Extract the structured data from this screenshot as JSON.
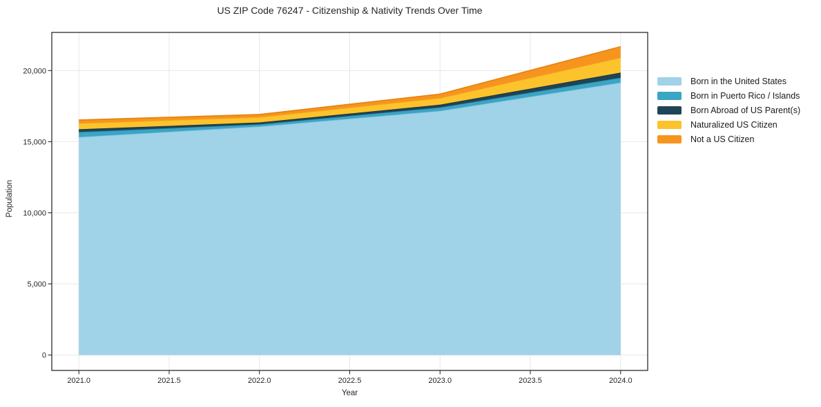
{
  "chart_data": {
    "type": "area",
    "stacked": true,
    "title": "US ZIP Code 76247 - Citizenship & Nativity Trends Over Time",
    "xlabel": "Year",
    "ylabel": "Population",
    "x": [
      2021,
      2022,
      2023,
      2024
    ],
    "series": [
      {
        "name": "Born in the United States",
        "color": "#a0d2e8",
        "edge": "#7cbcdd",
        "values": [
          15330,
          16070,
          17170,
          19160
        ]
      },
      {
        "name": "Born in Puerto Rico / Islands",
        "color": "#3aa5c4",
        "edge": "#2b8aa6",
        "values": [
          350,
          150,
          240,
          340
        ]
      },
      {
        "name": "Born Abroad of US Parent(s)",
        "color": "#1f4457",
        "edge": "#152f3d",
        "values": [
          190,
          130,
          195,
          355
        ]
      },
      {
        "name": "Naturalized US Citizen",
        "color": "#fcc32d",
        "edge": "#f2b01e",
        "values": [
          420,
          370,
          465,
          1050
        ]
      },
      {
        "name": "Not a US Citizen",
        "color": "#f7941f",
        "edge": "#e5830f",
        "values": [
          230,
          190,
          275,
          770
        ]
      }
    ],
    "x_ticks": [
      {
        "v": 2021.0,
        "label": "2021.0"
      },
      {
        "v": 2021.5,
        "label": "2021.5"
      },
      {
        "v": 2022.0,
        "label": "2022.0"
      },
      {
        "v": 2022.5,
        "label": "2022.5"
      },
      {
        "v": 2023.0,
        "label": "2023.0"
      },
      {
        "v": 2023.5,
        "label": "2023.5"
      },
      {
        "v": 2024.0,
        "label": "2024.0"
      }
    ],
    "y_ticks": [
      {
        "v": 0,
        "label": "0"
      },
      {
        "v": 5000,
        "label": "5,000"
      },
      {
        "v": 10000,
        "label": "10,000"
      },
      {
        "v": 15000,
        "label": "15,000"
      },
      {
        "v": 20000,
        "label": "20,000"
      }
    ],
    "xlim": [
      2020.85,
      2024.15
    ],
    "ylim": [
      -1080,
      22680
    ],
    "grid": true,
    "legend_position": "right",
    "colors": {
      "grid": "#e7e7e7",
      "axis": "#1a1a1a",
      "text": "#262626",
      "background": "#ffffff"
    }
  }
}
